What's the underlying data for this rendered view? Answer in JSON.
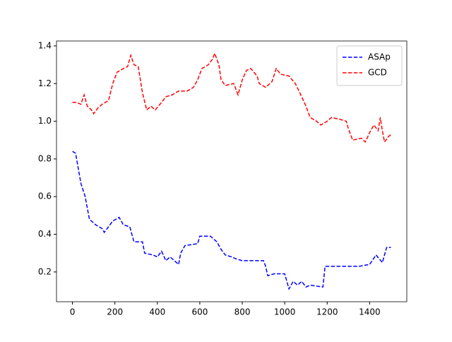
{
  "chart_data": {
    "type": "line",
    "legend": "upper right",
    "dashed": true,
    "xlim": [
      -75,
      1575
    ],
    "ylim": [
      0.042,
      1.426
    ],
    "xticks": [
      0,
      200,
      400,
      600,
      800,
      1000,
      1200,
      1400
    ],
    "yticks": [
      0.2,
      0.4,
      0.6,
      0.8,
      {
        "value": 1,
        "label": "1.0"
      },
      1.2,
      1.4
    ],
    "series": [
      {
        "name": "ASAp",
        "color": "#0000ff",
        "x": [
          0,
          15,
          40,
          60,
          80,
          110,
          140,
          150,
          170,
          190,
          220,
          240,
          270,
          280,
          290,
          330,
          340,
          380,
          400,
          420,
          440,
          460,
          480,
          500,
          510,
          530,
          590,
          600,
          650,
          680,
          700,
          720,
          750,
          770,
          800,
          900,
          910,
          920,
          950,
          1000,
          1020,
          1040,
          1060,
          1080,
          1100,
          1120,
          1180,
          1190,
          1300,
          1350,
          1400,
          1430,
          1460,
          1480,
          1500
        ],
        "values": [
          0.84,
          0.83,
          0.67,
          0.6,
          0.48,
          0.45,
          0.43,
          0.41,
          0.44,
          0.47,
          0.49,
          0.45,
          0.44,
          0.4,
          0.36,
          0.36,
          0.3,
          0.29,
          0.28,
          0.31,
          0.26,
          0.28,
          0.26,
          0.24,
          0.3,
          0.34,
          0.35,
          0.39,
          0.39,
          0.36,
          0.32,
          0.29,
          0.28,
          0.27,
          0.26,
          0.26,
          0.23,
          0.18,
          0.19,
          0.19,
          0.11,
          0.15,
          0.13,
          0.15,
          0.12,
          0.13,
          0.12,
          0.23,
          0.23,
          0.23,
          0.24,
          0.29,
          0.25,
          0.33,
          0.33
        ]
      },
      {
        "name": "GCD",
        "color": "#ff0000",
        "x": [
          0,
          20,
          40,
          55,
          70,
          90,
          100,
          120,
          140,
          170,
          190,
          210,
          240,
          260,
          275,
          290,
          310,
          330,
          350,
          370,
          390,
          420,
          440,
          470,
          500,
          540,
          570,
          590,
          610,
          640,
          660,
          670,
          690,
          700,
          720,
          760,
          780,
          800,
          820,
          840,
          870,
          880,
          910,
          940,
          960,
          980,
          1020,
          1050,
          1080,
          1100,
          1120,
          1150,
          1170,
          1200,
          1220,
          1260,
          1290,
          1300,
          1320,
          1360,
          1380,
          1400,
          1420,
          1440,
          1450,
          1460,
          1470,
          1490,
          1500
        ],
        "values": [
          1.1,
          1.1,
          1.09,
          1.14,
          1.08,
          1.06,
          1.04,
          1.07,
          1.09,
          1.11,
          1.2,
          1.26,
          1.28,
          1.29,
          1.35,
          1.3,
          1.29,
          1.15,
          1.06,
          1.08,
          1.06,
          1.1,
          1.13,
          1.14,
          1.16,
          1.16,
          1.18,
          1.22,
          1.28,
          1.3,
          1.33,
          1.36,
          1.3,
          1.22,
          1.19,
          1.2,
          1.14,
          1.22,
          1.27,
          1.28,
          1.24,
          1.2,
          1.18,
          1.21,
          1.28,
          1.25,
          1.24,
          1.2,
          1.13,
          1.08,
          1.02,
          1.0,
          0.98,
          1.0,
          1.02,
          1.01,
          1.0,
          0.96,
          0.9,
          0.91,
          0.89,
          0.94,
          0.98,
          0.95,
          1.02,
          0.95,
          0.89,
          0.92,
          0.93
        ]
      }
    ]
  }
}
